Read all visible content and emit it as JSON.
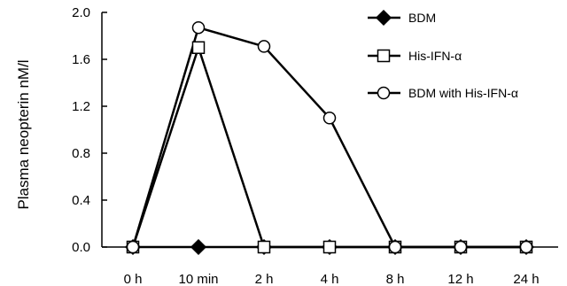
{
  "chart_data": {
    "type": "line",
    "title": "",
    "xlabel": "",
    "ylabel": "Plasma neopterin nM/l",
    "categories": [
      "0 h",
      "10 min",
      "2 h",
      "4 h",
      "8 h",
      "12 h",
      "24 h"
    ],
    "yticks": [
      "0.0",
      "0.4",
      "0.8",
      "1.2",
      "1.6",
      "2.0"
    ],
    "ylim": [
      0,
      2.0
    ],
    "grid": false,
    "legend_position": "top-right",
    "series": [
      {
        "name": "BDM",
        "marker": "diamond",
        "fill": "#000000",
        "values": [
          0,
          0,
          0,
          0,
          0,
          0,
          0
        ]
      },
      {
        "name": "His-IFN-α",
        "marker": "square",
        "fill": "#ffffff",
        "values": [
          0,
          1.7,
          0,
          0,
          0,
          0,
          0
        ]
      },
      {
        "name": "BDM with His-IFN-α",
        "marker": "circle",
        "fill": "#ffffff",
        "values": [
          0,
          1.87,
          1.71,
          1.1,
          0,
          0,
          0
        ]
      }
    ]
  }
}
